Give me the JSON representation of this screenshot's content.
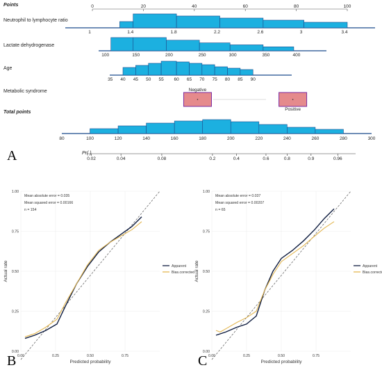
{
  "panel_letters": {
    "a": "A",
    "b": "B",
    "c": "C"
  },
  "chart_data": [
    {
      "type": "nomogram",
      "panel": "A",
      "rows": [
        {
          "label": "Points",
          "italic_bold": true,
          "is_axis": true,
          "ticks": [
            "0",
            "20",
            "40",
            "60",
            "80",
            "100"
          ],
          "range": [
            0,
            100
          ]
        },
        {
          "label": "Neutrophil to lymphocyte ratio",
          "ticks": [
            "1",
            "1.4",
            "1.8",
            "2.2",
            "2.6",
            "3",
            "3.4"
          ],
          "points": [
            0,
            16,
            33,
            50,
            67,
            83,
            100
          ],
          "box_heights": [
            0.45,
            1,
            0.85,
            0.7,
            0.55,
            0.4,
            0.25
          ]
        },
        {
          "label": "Lactate dehydrogenase",
          "ticks": [
            "100",
            "150",
            "200",
            "250",
            "300",
            "350",
            "400"
          ],
          "points": [
            4,
            16,
            29,
            42,
            54,
            67,
            79
          ],
          "box_heights": [
            1,
            1,
            0.8,
            0.6,
            0.45,
            0.3
          ]
        },
        {
          "label": "Age",
          "ticks": [
            "35",
            "40",
            "45",
            "50",
            "55",
            "60",
            "65",
            "70",
            "75",
            "80",
            "85",
            "90"
          ],
          "points": [
            7,
            12,
            17,
            22,
            27,
            33,
            38,
            43,
            48,
            53,
            58,
            63
          ],
          "box_heights": [
            0.55,
            0.7,
            0.85,
            1,
            0.95,
            0.85,
            0.75,
            0.6,
            0.5,
            0.4
          ]
        },
        {
          "label": "Metabolic syndrome",
          "categories": [
            "Negative",
            "Positive"
          ],
          "points": [
            38,
            77
          ]
        },
        {
          "label": "Total points",
          "italic_bold": true,
          "ticks": [
            "80",
            "100",
            "120",
            "140",
            "160",
            "180",
            "200",
            "220",
            "240",
            "260",
            "280",
            "300"
          ],
          "values": [
            80,
            100,
            120,
            140,
            160,
            180,
            200,
            220,
            240,
            260,
            280,
            300
          ],
          "box_heights": [
            0.35,
            0.55,
            0.75,
            0.9,
            1,
            0.85,
            0.65,
            0.45,
            0.3
          ]
        },
        {
          "label": "Pr( )",
          "ticks": [
            "0.02",
            "0.04",
            "0.08",
            "0.2",
            "0.4",
            "0.6",
            "0.8",
            "0.9",
            "0.96"
          ],
          "total_points": [
            101,
            122,
            151,
            187,
            204,
            225,
            240,
            257,
            276
          ]
        }
      ]
    },
    {
      "type": "line",
      "panel": "B",
      "annotations": [
        "Mean absolute error = 0.035",
        "Mean squared error = 0.00166",
        "n = 154"
      ],
      "xlabel": "Predicted probability",
      "ylabel": "Actual rate",
      "xlim": [
        0,
        1
      ],
      "ylim": [
        0,
        1
      ],
      "xticks": [
        "0.00",
        "0.25",
        "0.50",
        "0.75"
      ],
      "yticks": [
        "0.00",
        "0.25",
        "0.50",
        "0.75",
        "1.00"
      ],
      "legend": [
        "Apparent",
        "Bias.corrected"
      ],
      "series": [
        {
          "name": "Apparent",
          "color": "#0d1b3e",
          "x": [
            0.03,
            0.1,
            0.18,
            0.26,
            0.32,
            0.4,
            0.48,
            0.56,
            0.64,
            0.72,
            0.8,
            0.87
          ],
          "y": [
            0.08,
            0.1,
            0.13,
            0.17,
            0.28,
            0.42,
            0.53,
            0.62,
            0.68,
            0.73,
            0.78,
            0.84
          ]
        },
        {
          "name": "Bias.corrected",
          "color": "#e3b650",
          "x": [
            0.03,
            0.1,
            0.18,
            0.26,
            0.32,
            0.4,
            0.48,
            0.56,
            0.64,
            0.72,
            0.8,
            0.87
          ],
          "y": [
            0.09,
            0.11,
            0.15,
            0.2,
            0.3,
            0.42,
            0.54,
            0.63,
            0.68,
            0.72,
            0.76,
            0.81
          ]
        }
      ]
    },
    {
      "type": "line",
      "panel": "C",
      "annotations": [
        "Mean absolute error = 0.037",
        "Mean squared error = 0.00207",
        "n = 65"
      ],
      "xlabel": "Predicted probability",
      "ylabel": "Actual rate",
      "xlim": [
        0,
        1
      ],
      "ylim": [
        0,
        1
      ],
      "xticks": [
        "0.00",
        "0.25",
        "0.50",
        "0.75"
      ],
      "yticks": [
        "0.00",
        "0.25",
        "0.50",
        "0.75",
        "1.00"
      ],
      "legend": [
        "Apparent",
        "Bias.corrected"
      ],
      "series": [
        {
          "name": "Apparent",
          "color": "#0d1b3e",
          "x": [
            0.03,
            0.1,
            0.18,
            0.25,
            0.32,
            0.38,
            0.44,
            0.5,
            0.58,
            0.66,
            0.74,
            0.81,
            0.88
          ],
          "y": [
            0.1,
            0.12,
            0.15,
            0.17,
            0.22,
            0.38,
            0.5,
            0.58,
            0.63,
            0.69,
            0.76,
            0.83,
            0.89
          ]
        },
        {
          "name": "Bias.corrected",
          "color": "#e3b650",
          "x": [
            0.03,
            0.06,
            0.1,
            0.18,
            0.25,
            0.32,
            0.38,
            0.44,
            0.5,
            0.58,
            0.66,
            0.74,
            0.81,
            0.88
          ],
          "y": [
            0.13,
            0.12,
            0.14,
            0.18,
            0.21,
            0.25,
            0.38,
            0.48,
            0.56,
            0.61,
            0.66,
            0.72,
            0.77,
            0.81
          ]
        }
      ]
    }
  ]
}
